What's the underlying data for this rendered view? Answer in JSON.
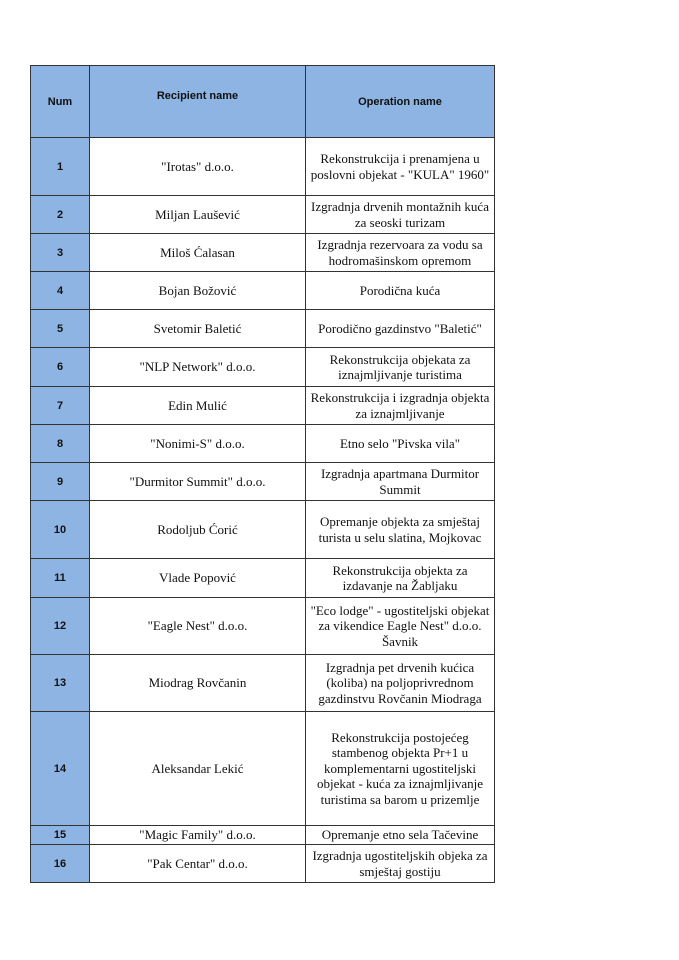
{
  "table": {
    "headers": {
      "num": "Num",
      "recipient": "Recipient name",
      "operation": "Operation name"
    },
    "header_color": "#8db4e2",
    "rows": [
      {
        "num": "1",
        "recipient": "\"Irotas\" d.o.o.",
        "operation": "Rekonstrukcija i prenamjena u poslovni objekat - \"KULA\" 1960\""
      },
      {
        "num": "2",
        "recipient": "Miljan Laušević",
        "operation": "Izgradnja drvenih montažnih kuća za seoski turizam"
      },
      {
        "num": "3",
        "recipient": "Miloš Ćalasan",
        "operation": "Izgradnja rezervoara za vodu sa hodromašinskom opremom"
      },
      {
        "num": "4",
        "recipient": "Bojan Božović",
        "operation": "Porodična kuća"
      },
      {
        "num": "5",
        "recipient": "Svetomir Baletić",
        "operation": "Porodično gazdinstvo \"Baletić\""
      },
      {
        "num": "6",
        "recipient": "\"NLP Network\" d.o.o.",
        "operation": "Rekonstrukcija objekata za iznajmljivanje turistima"
      },
      {
        "num": "7",
        "recipient": "Edin Mulić",
        "operation": "Rekonstrukcija i izgradnja objekta za iznajmljivanje"
      },
      {
        "num": "8",
        "recipient": "\"Nonimi-S\" d.o.o.",
        "operation": "Etno selo \"Pivska vila\""
      },
      {
        "num": "9",
        "recipient": "\"Durmitor Summit\" d.o.o.",
        "operation": "Izgradnja apartmana Durmitor Summit"
      },
      {
        "num": "10",
        "recipient": "Rodoljub Ćorić",
        "operation": "Opremanje objekta za smještaj turista u selu slatina, Mojkovac"
      },
      {
        "num": "11",
        "recipient": "Vlade Popović",
        "operation": "Rekonstrukcija objekta za izdavanje na Žabljaku"
      },
      {
        "num": "12",
        "recipient": "\"Eagle Nest\" d.o.o.",
        "operation": "\"Eco lodge\" - ugostiteljski objekat za vikendice Eagle Nest\" d.o.o. Šavnik"
      },
      {
        "num": "13",
        "recipient": "Miodrag Rovčanin",
        "operation": "Izgradnja pet drvenih kućica (koliba) na poljoprivrednom gazdinstvu Rovčanin Miodraga"
      },
      {
        "num": "14",
        "recipient": "Aleksandar Lekić",
        "operation": "Rekonstrukcija postojećeg stambenog objekta Pr+1 u komplementarni ugostiteljski objekat - kuća za iznajmljivanje turistima sa barom u prizemlje"
      },
      {
        "num": "15",
        "recipient": "\"Magic Family\" d.o.o.",
        "operation": "Opremanje etno sela Tačevine"
      },
      {
        "num": "16",
        "recipient": "\"Pak Centar\" d.o.o.",
        "operation": "Izgradnja ugostiteljskih objeka za smještaj gostiju"
      }
    ]
  }
}
